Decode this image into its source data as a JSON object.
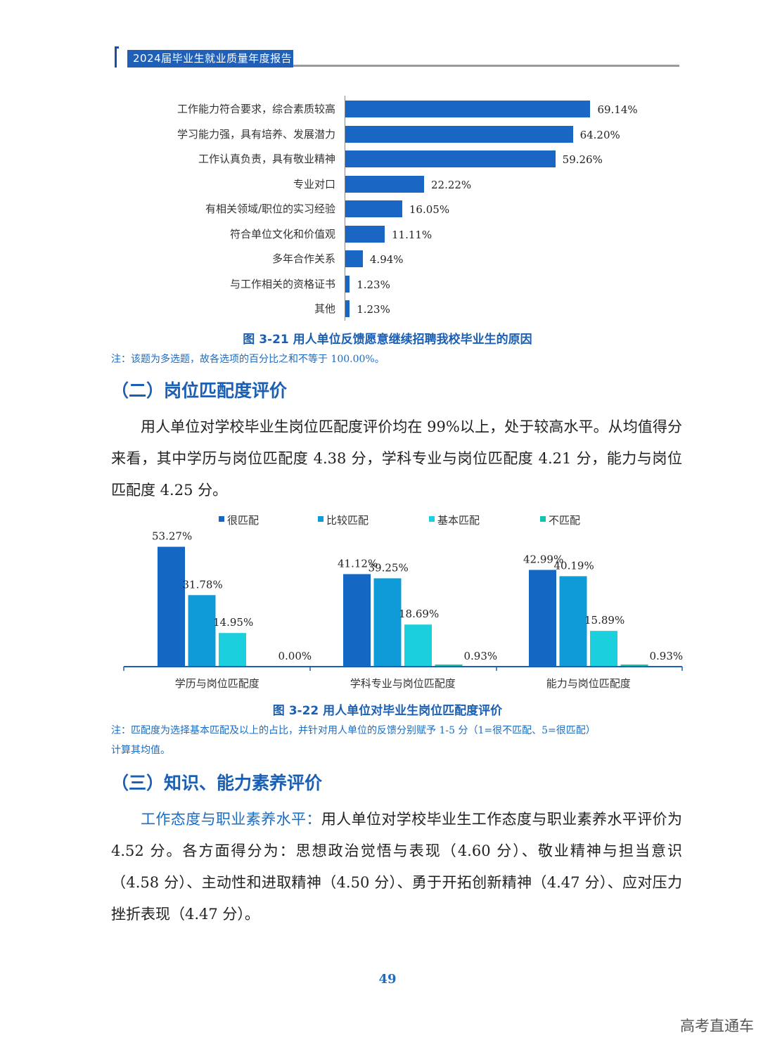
{
  "header": {
    "title": "2024届毕业生就业质量年度报告"
  },
  "chart_data": [
    {
      "type": "bar",
      "orientation": "horizontal",
      "title": "图 3-21  用人单位反馈愿意继续招聘我校毕业生的原因",
      "categories": [
        "工作能力符合要求，综合素质较高",
        "学习能力强，具有培养、发展潜力",
        "工作认真负责，具有敬业精神",
        "专业对口",
        "有相关领域/职位的实习经验",
        "符合单位文化和价值观",
        "多年合作关系",
        "与工作相关的资格证书",
        "其他"
      ],
      "values": [
        69.14,
        64.2,
        59.26,
        22.22,
        16.05,
        11.11,
        4.94,
        1.23,
        1.23
      ],
      "labels": [
        "69.14%",
        "64.20%",
        "59.26%",
        "22.22%",
        "16.05%",
        "11.11%",
        "4.94%",
        "1.23%",
        "1.23%"
      ],
      "color": "#1a66c4",
      "xlim": [
        0,
        100
      ]
    },
    {
      "type": "bar",
      "title": "图 3-22  用人单位对毕业生岗位匹配度评价",
      "categories": [
        "学历与岗位匹配度",
        "学科专业与岗位匹配度",
        "能力与岗位匹配度"
      ],
      "series": [
        {
          "name": "很匹配",
          "color": "#1468c4",
          "values": [
            53.27,
            41.12,
            42.99
          ],
          "labels": [
            "53.27%",
            "41.12%",
            "42.99%"
          ]
        },
        {
          "name": "比较匹配",
          "color": "#0f9bd8",
          "values": [
            31.78,
            39.25,
            40.19
          ],
          "labels": [
            "31.78%",
            "39.25%",
            "40.19%"
          ]
        },
        {
          "name": "基本匹配",
          "color": "#1ccfdc",
          "values": [
            14.95,
            18.69,
            15.89
          ],
          "labels": [
            "14.95%",
            "18.69%",
            "15.89%"
          ]
        },
        {
          "name": "不匹配",
          "color": "#10c5b0",
          "values": [
            0.0,
            0.93,
            0.93
          ],
          "labels": [
            "0.00%",
            "0.93%",
            "0.93%"
          ]
        }
      ],
      "ylim": [
        0,
        60
      ]
    }
  ],
  "note1": "注：该题为多选题，故各选项的百分比之和不等于 100.00%。",
  "section2": {
    "title": "（二）岗位匹配度评价"
  },
  "para2": "用人单位对学校毕业生岗位匹配度评价均在 99%以上，处于较高水平。从均值得分来看，其中学历与岗位匹配度 4.38 分，学科专业与岗位匹配度 4.21 分，能力与岗位匹配度 4.25 分。",
  "note2": {
    "line1": "注：匹配度为选择基本匹配及以上的占比，并针对用人单位的反馈分别赋予 1-5 分（1=很不匹配、5=很匹配）",
    "line2": "计算其均值。"
  },
  "section3": {
    "title": "（三）知识、能力素养评价"
  },
  "para3": {
    "highlight": "工作态度与职业素养水平：",
    "text": "用人单位对学校毕业生工作态度与职业素养水平评价为 4.52 分。各方面得分为：思想政治觉悟与表现（4.60 分）、敬业精神与担当意识（4.58 分）、主动性和进取精神（4.50 分）、勇于开拓创新精神（4.47 分）、应对压力挫折表现（4.47 分）。"
  },
  "page_number": "49",
  "watermark": "高考直通车"
}
